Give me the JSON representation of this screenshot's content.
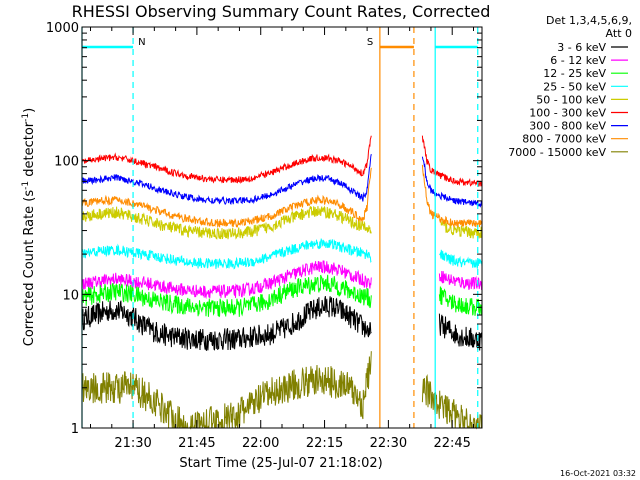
{
  "chart_data": {
    "type": "line",
    "title": "RHESSI Observing Summary Count Rates, Corrected",
    "xlabel": "Start Time (25-Jul-07 21:18:02)",
    "ylabel_main": "Corrected Count Rate (s",
    "ylabel_sup1": "-1",
    "ylabel_mid": " detector",
    "ylabel_sup2": "-1",
    "ylabel_end": ")",
    "x_unit": "minutes after 21:18:02",
    "xlim": [
      0,
      94
    ],
    "ylim": [
      1,
      1000
    ],
    "yscale": "log",
    "xticks": [
      {
        "x": 12,
        "label": "21:30"
      },
      {
        "x": 27,
        "label": "21:45"
      },
      {
        "x": 42,
        "label": "22:00"
      },
      {
        "x": 57,
        "label": "22:15"
      },
      {
        "x": 72,
        "label": "22:30"
      },
      {
        "x": 87,
        "label": "22:45"
      }
    ],
    "yticks": [
      {
        "y": 1,
        "label": "1"
      },
      {
        "y": 10,
        "label": "10"
      },
      {
        "y": 100,
        "label": "100"
      },
      {
        "y": 1000,
        "label": "1000"
      }
    ],
    "legend_header": [
      "Det 1,3,4,5,6,9,",
      "Att 0"
    ],
    "legend_position": "right",
    "series": [
      {
        "name": "3 - 6 keV",
        "color": "#000000",
        "x": [
          0,
          3,
          6,
          8,
          10,
          12,
          14,
          17,
          20,
          24,
          28,
          32,
          36,
          40,
          44,
          48,
          51,
          54,
          56,
          58,
          60,
          63,
          65,
          67,
          68
        ],
        "y": [
          6.5,
          7.0,
          7.5,
          7.6,
          7.3,
          6.8,
          6.0,
          5.3,
          4.9,
          4.7,
          4.6,
          4.6,
          4.6,
          4.8,
          5.0,
          5.6,
          6.5,
          7.5,
          8.0,
          8.2,
          7.8,
          6.8,
          6.0,
          5.5,
          5.0
        ],
        "x2": [
          84,
          86,
          88,
          90,
          92,
          95
        ],
        "y2": [
          6.0,
          5.5,
          5.0,
          4.8,
          4.6,
          4.6
        ]
      },
      {
        "name": "6 - 12 keV",
        "color": "#ff00ff",
        "x": [
          0,
          4,
          8,
          12,
          16,
          20,
          24,
          28,
          32,
          36,
          40,
          44,
          48,
          52,
          55,
          58,
          61,
          64,
          67,
          68
        ],
        "y": [
          12.0,
          12.5,
          13.0,
          12.5,
          12.0,
          11.2,
          10.8,
          10.5,
          10.5,
          10.5,
          11.0,
          12.0,
          13.5,
          15.0,
          16.0,
          16.0,
          15.0,
          13.5,
          12.5,
          12.0
        ],
        "x2": [
          84,
          86,
          88,
          90,
          92,
          95
        ],
        "y2": [
          14.0,
          13.0,
          12.5,
          12.2,
          12.0,
          12.0
        ]
      },
      {
        "name": "12 - 25 keV",
        "color": "#00ff00",
        "x": [
          0,
          4,
          8,
          12,
          16,
          20,
          24,
          28,
          32,
          36,
          40,
          44,
          48,
          52,
          55,
          58,
          61,
          64,
          67,
          68
        ],
        "y": [
          9.5,
          10.0,
          10.5,
          10.0,
          9.2,
          8.6,
          8.2,
          8.0,
          7.9,
          7.9,
          8.2,
          9.0,
          10.5,
          11.5,
          12.0,
          12.0,
          11.2,
          10.2,
          9.5,
          9.0
        ],
        "x2": [
          84,
          86,
          88,
          90,
          92,
          95
        ],
        "y2": [
          10.0,
          9.0,
          8.5,
          8.2,
          8.0,
          8.0
        ]
      },
      {
        "name": "25 - 50 keV",
        "color": "#00ffff",
        "x": [
          0,
          4,
          8,
          12,
          16,
          20,
          24,
          28,
          32,
          36,
          40,
          44,
          48,
          52,
          55,
          58,
          61,
          64,
          67,
          68
        ],
        "y": [
          20.0,
          21.0,
          21.5,
          20.5,
          19.5,
          18.5,
          17.5,
          17.0,
          17.0,
          17.0,
          17.5,
          19.0,
          21.0,
          23.0,
          24.0,
          24.0,
          22.5,
          21.0,
          20.0,
          19.0
        ],
        "x2": [
          84,
          86,
          88,
          90,
          92,
          95
        ],
        "y2": [
          20.0,
          18.5,
          17.5,
          17.0,
          17.0,
          17.0
        ]
      },
      {
        "name": "50 - 100 keV",
        "color": "#cccc00",
        "x": [
          0,
          4,
          8,
          12,
          16,
          20,
          24,
          28,
          32,
          36,
          40,
          44,
          48,
          52,
          55,
          58,
          61,
          64,
          67,
          68
        ],
        "y": [
          38.0,
          40.0,
          41.0,
          38.0,
          35.0,
          32.0,
          30.0,
          29.0,
          28.5,
          28.5,
          29.5,
          32.0,
          36.0,
          40.0,
          42.0,
          41.0,
          38.0,
          34.0,
          31.0,
          30.0
        ],
        "x2": [
          84,
          86,
          88,
          90,
          92,
          95
        ],
        "y2": [
          35.0,
          31.0,
          30.0,
          29.5,
          29.0,
          29.0
        ]
      },
      {
        "name": "100 - 300 keV",
        "color": "#ff0000",
        "x": [
          0,
          4,
          8,
          12,
          16,
          20,
          24,
          28,
          32,
          36,
          40,
          44,
          48,
          52,
          55,
          58,
          61,
          64,
          66,
          67,
          68
        ],
        "y": [
          98.0,
          103.0,
          106.0,
          100.0,
          92.0,
          84.0,
          78.0,
          74.0,
          72.0,
          72.0,
          74.0,
          80.0,
          90.0,
          100.0,
          105.0,
          104.0,
          98.0,
          88.0,
          80.0,
          95.0,
          150.0
        ],
        "x2": [
          80,
          81,
          82,
          84,
          86,
          88,
          90,
          92,
          95
        ],
        "y2": [
          150.0,
          100.0,
          85.0,
          78.0,
          73.0,
          70.0,
          69.0,
          68.0,
          68.0
        ]
      },
      {
        "name": "300 - 800 keV",
        "color": "#0000ff",
        "x": [
          0,
          4,
          8,
          12,
          16,
          20,
          24,
          28,
          32,
          36,
          40,
          44,
          48,
          52,
          55,
          58,
          61,
          64,
          66,
          67,
          68
        ],
        "y": [
          70.0,
          72.0,
          75.0,
          70.0,
          64.0,
          58.0,
          54.0,
          51.0,
          50.0,
          50.0,
          51.0,
          55.0,
          62.0,
          70.0,
          74.0,
          73.0,
          67.0,
          58.0,
          52.0,
          60.0,
          110.0
        ],
        "x2": [
          80,
          81,
          82,
          84,
          86,
          88,
          90,
          92,
          95
        ],
        "y2": [
          110.0,
          70.0,
          60.0,
          55.0,
          52.0,
          50.0,
          49.0,
          48.0,
          48.0
        ]
      },
      {
        "name": "800 - 7000 keV",
        "color": "#ff8c00",
        "x": [
          0,
          4,
          8,
          12,
          16,
          20,
          24,
          28,
          32,
          36,
          40,
          44,
          48,
          52,
          55,
          58,
          61,
          64,
          66,
          67,
          68
        ],
        "y": [
          48.0,
          50.0,
          51.0,
          48.0,
          44.0,
          40.0,
          37.0,
          35.0,
          34.0,
          34.0,
          35.5,
          38.0,
          43.0,
          48.0,
          51.0,
          50.0,
          46.0,
          40.0,
          36.0,
          45.0,
          90.0
        ],
        "x2": [
          80,
          81,
          82,
          84,
          86,
          88,
          90,
          92,
          95
        ],
        "y2": [
          90.0,
          50.0,
          40.0,
          37.0,
          35.0,
          34.0,
          34.0,
          34.0,
          34.0
        ]
      },
      {
        "name": "7000 - 15000 keV",
        "color": "#808000",
        "x": [
          0,
          12,
          24,
          36,
          44,
          50,
          56,
          62,
          66,
          68
        ],
        "y": [
          2.0,
          2.0,
          1.0,
          1.2,
          1.8,
          2.1,
          2.3,
          2.1,
          1.5,
          3.0
        ],
        "x2": [
          80,
          84,
          88,
          92,
          95
        ],
        "y2": [
          2.0,
          1.5,
          1.2,
          1.0,
          1.0
        ]
      }
    ],
    "flags": [
      {
        "label": "N",
        "color": "#00ffff",
        "segments": [
          [
            0,
            12
          ],
          [
            83,
            93
          ]
        ]
      },
      {
        "label": "S",
        "color": "#ff8c00",
        "segments": [
          [
            70,
            78
          ]
        ]
      }
    ],
    "solid_lines": [
      {
        "x": 0,
        "color": "#00ffff"
      },
      {
        "x": 70,
        "color": "#ff8c00"
      },
      {
        "x": 83,
        "color": "#00ffff"
      }
    ],
    "dashed_lines": [
      {
        "x": 12,
        "color": "#00ffff"
      },
      {
        "x": 78,
        "color": "#ff8c00"
      },
      {
        "x": 93,
        "color": "#00ffff"
      }
    ]
  },
  "footer_timestamp": "16-Oct-2021 03:32"
}
